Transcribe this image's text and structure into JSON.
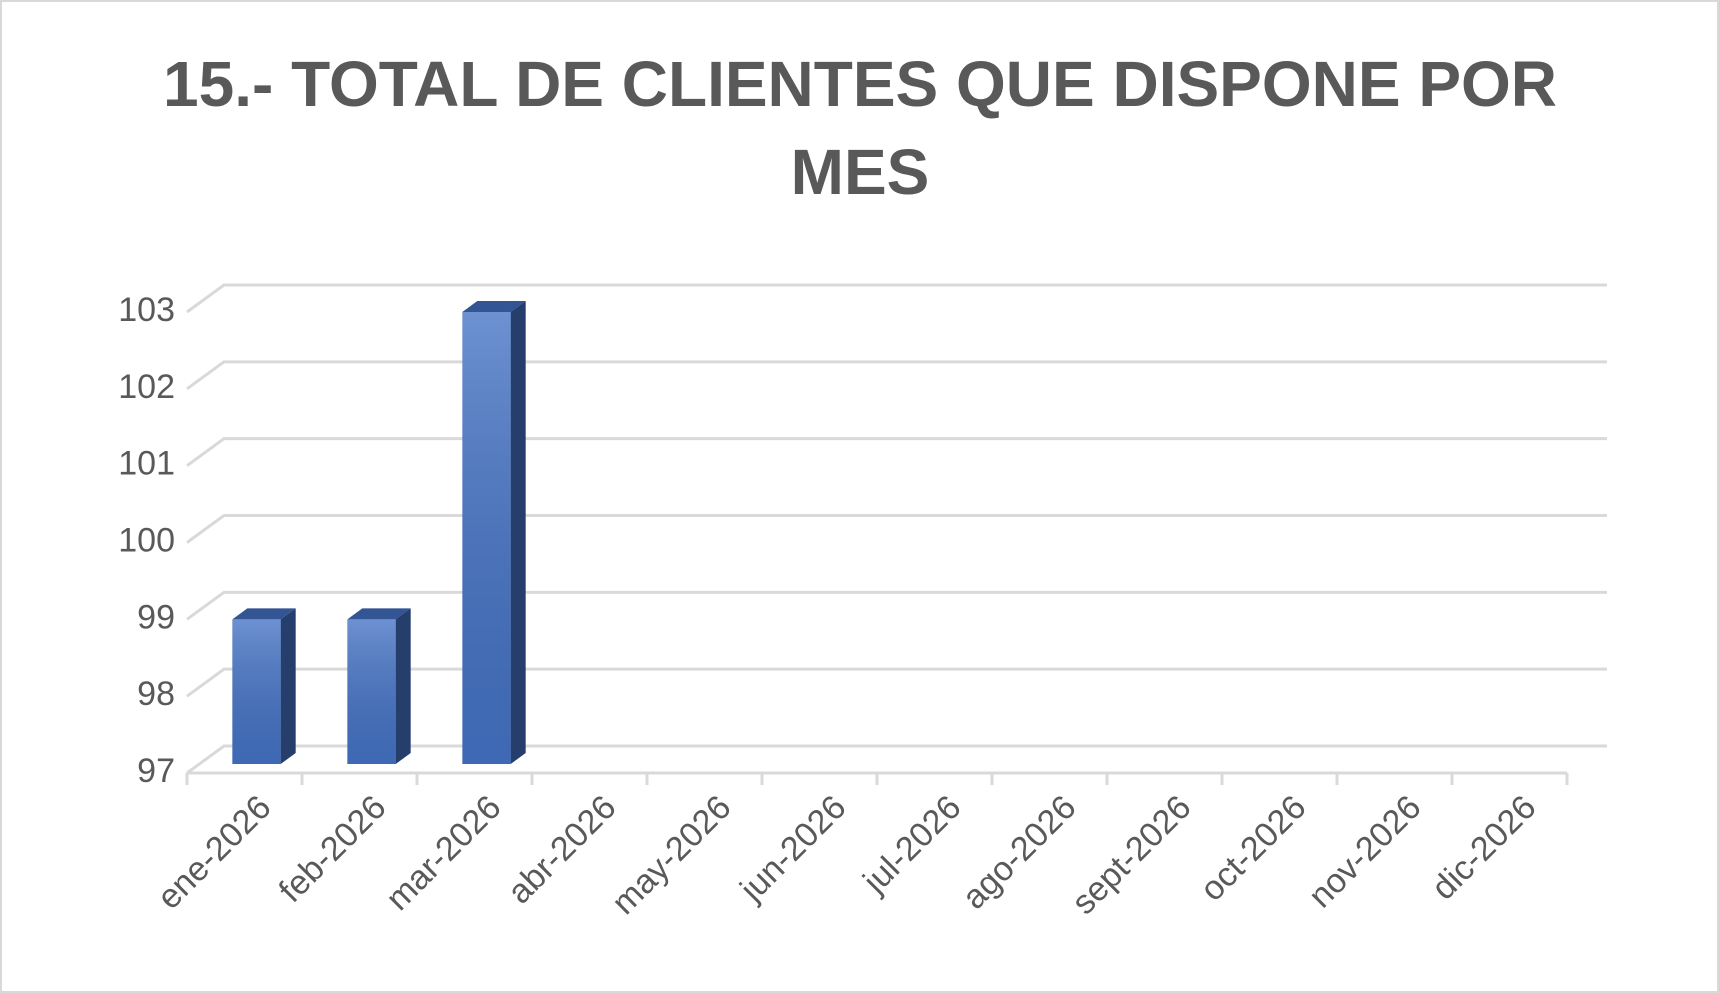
{
  "chart_data": {
    "type": "bar3d",
    "title": "15.- TOTAL DE CLIENTES QUE DISPONE POR MES",
    "categories": [
      "ene-2026",
      "feb-2026",
      "mar-2026",
      "abr-2026",
      "may-2026",
      "jun-2026",
      "jul-2026",
      "ago-2026",
      "sept-2026",
      "oct-2026",
      "nov-2026",
      "dic-2026"
    ],
    "values": [
      99,
      99,
      103,
      null,
      null,
      null,
      null,
      null,
      null,
      null,
      null,
      null
    ],
    "color": "#4472c4",
    "ylim": [
      97,
      103
    ],
    "yticks": [
      97,
      98,
      99,
      100,
      101,
      102,
      103
    ],
    "grid": true
  }
}
